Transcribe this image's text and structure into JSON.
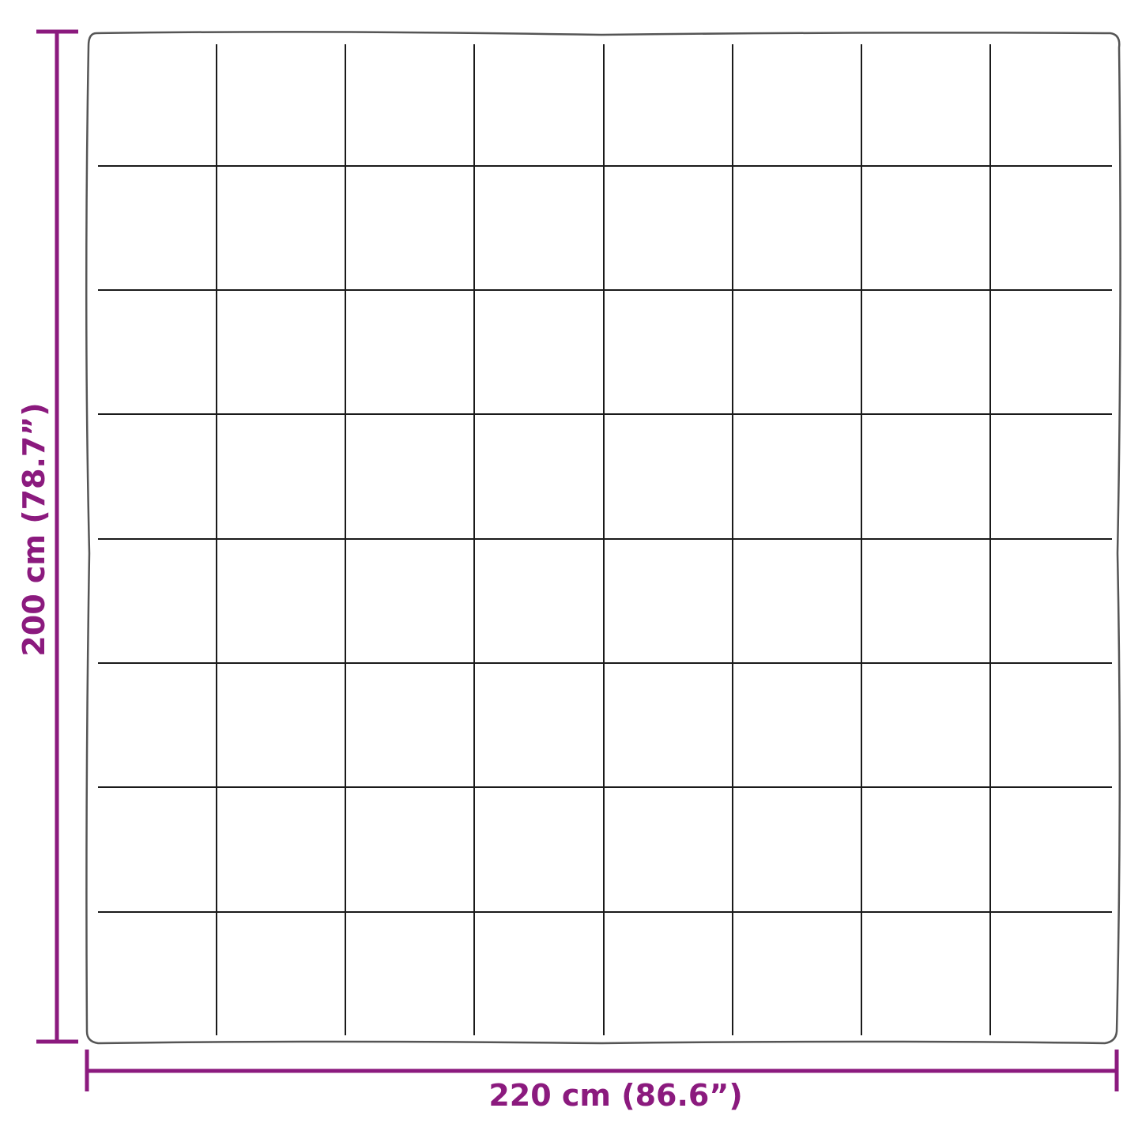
{
  "colors": {
    "dimension": "#8b1a7e",
    "outline": "#555555",
    "stitching": "#1a1a1a"
  },
  "dimensions": {
    "width_label": "220 cm (86.6”)",
    "height_label": "200 cm (78.7”)"
  }
}
